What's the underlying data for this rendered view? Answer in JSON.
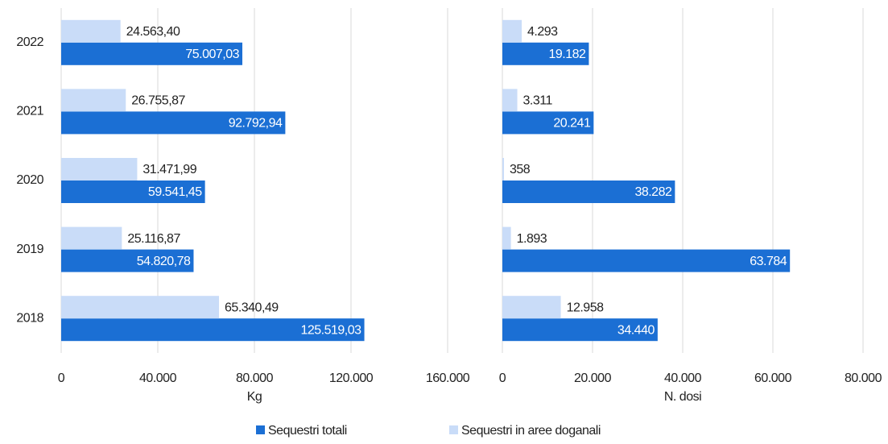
{
  "chart_data": [
    {
      "type": "bar",
      "orientation": "horizontal",
      "x_label": "Kg",
      "categories": [
        "2022",
        "2021",
        "2020",
        "2019",
        "2018"
      ],
      "series": [
        {
          "name": "Sequestri totali",
          "color": "#1b6fd4",
          "values": [
            75007.03,
            92792.94,
            59541.45,
            54820.78,
            125519.03
          ],
          "value_labels": [
            "75.007,03",
            "92.792,94",
            "59.541,45",
            "54.820,78",
            "125.519,03"
          ]
        },
        {
          "name": "Sequestri in aree doganali",
          "color": "#c9dcf8",
          "values": [
            24563.4,
            26755.87,
            31471.99,
            25116.87,
            65340.49
          ],
          "value_labels": [
            "24.563,40",
            "26.755,87",
            "31.471,99",
            "25.116,87",
            "65.340,49"
          ]
        }
      ],
      "xlim": [
        0,
        160000
      ],
      "xticks": [
        0,
        {
          "value": 40000,
          "label": "40.000"
        },
        {
          "value": 80000,
          "label": "80.000"
        },
        {
          "value": 120000,
          "label": "120.000"
        },
        {
          "value": 160000,
          "label": "160.000"
        }
      ],
      "grid": true,
      "legend": "bottom"
    },
    {
      "type": "bar",
      "orientation": "horizontal",
      "x_label": "N. dosi",
      "series": [
        {
          "color": "#1b6fd4",
          "values": [
            19182,
            20241,
            38282,
            63784,
            34440
          ],
          "value_labels": [
            "19.182",
            "20.241",
            "38.282",
            "63.784",
            "34.440"
          ]
        },
        {
          "color": "#c9dcf8",
          "values": [
            4293,
            3311,
            358,
            1893,
            12958
          ],
          "value_labels": [
            "4.293",
            "3.311",
            "358",
            "1.893",
            "12.958"
          ]
        }
      ],
      "xlim": [
        0,
        80000
      ],
      "xticks": [
        0,
        {
          "value": 20000,
          "label": "20.000"
        },
        {
          "value": 40000,
          "label": "40.000"
        },
        {
          "value": 60000,
          "label": "60.000"
        },
        {
          "value": 80000,
          "label": "80.000"
        }
      ],
      "grid": true
    }
  ]
}
